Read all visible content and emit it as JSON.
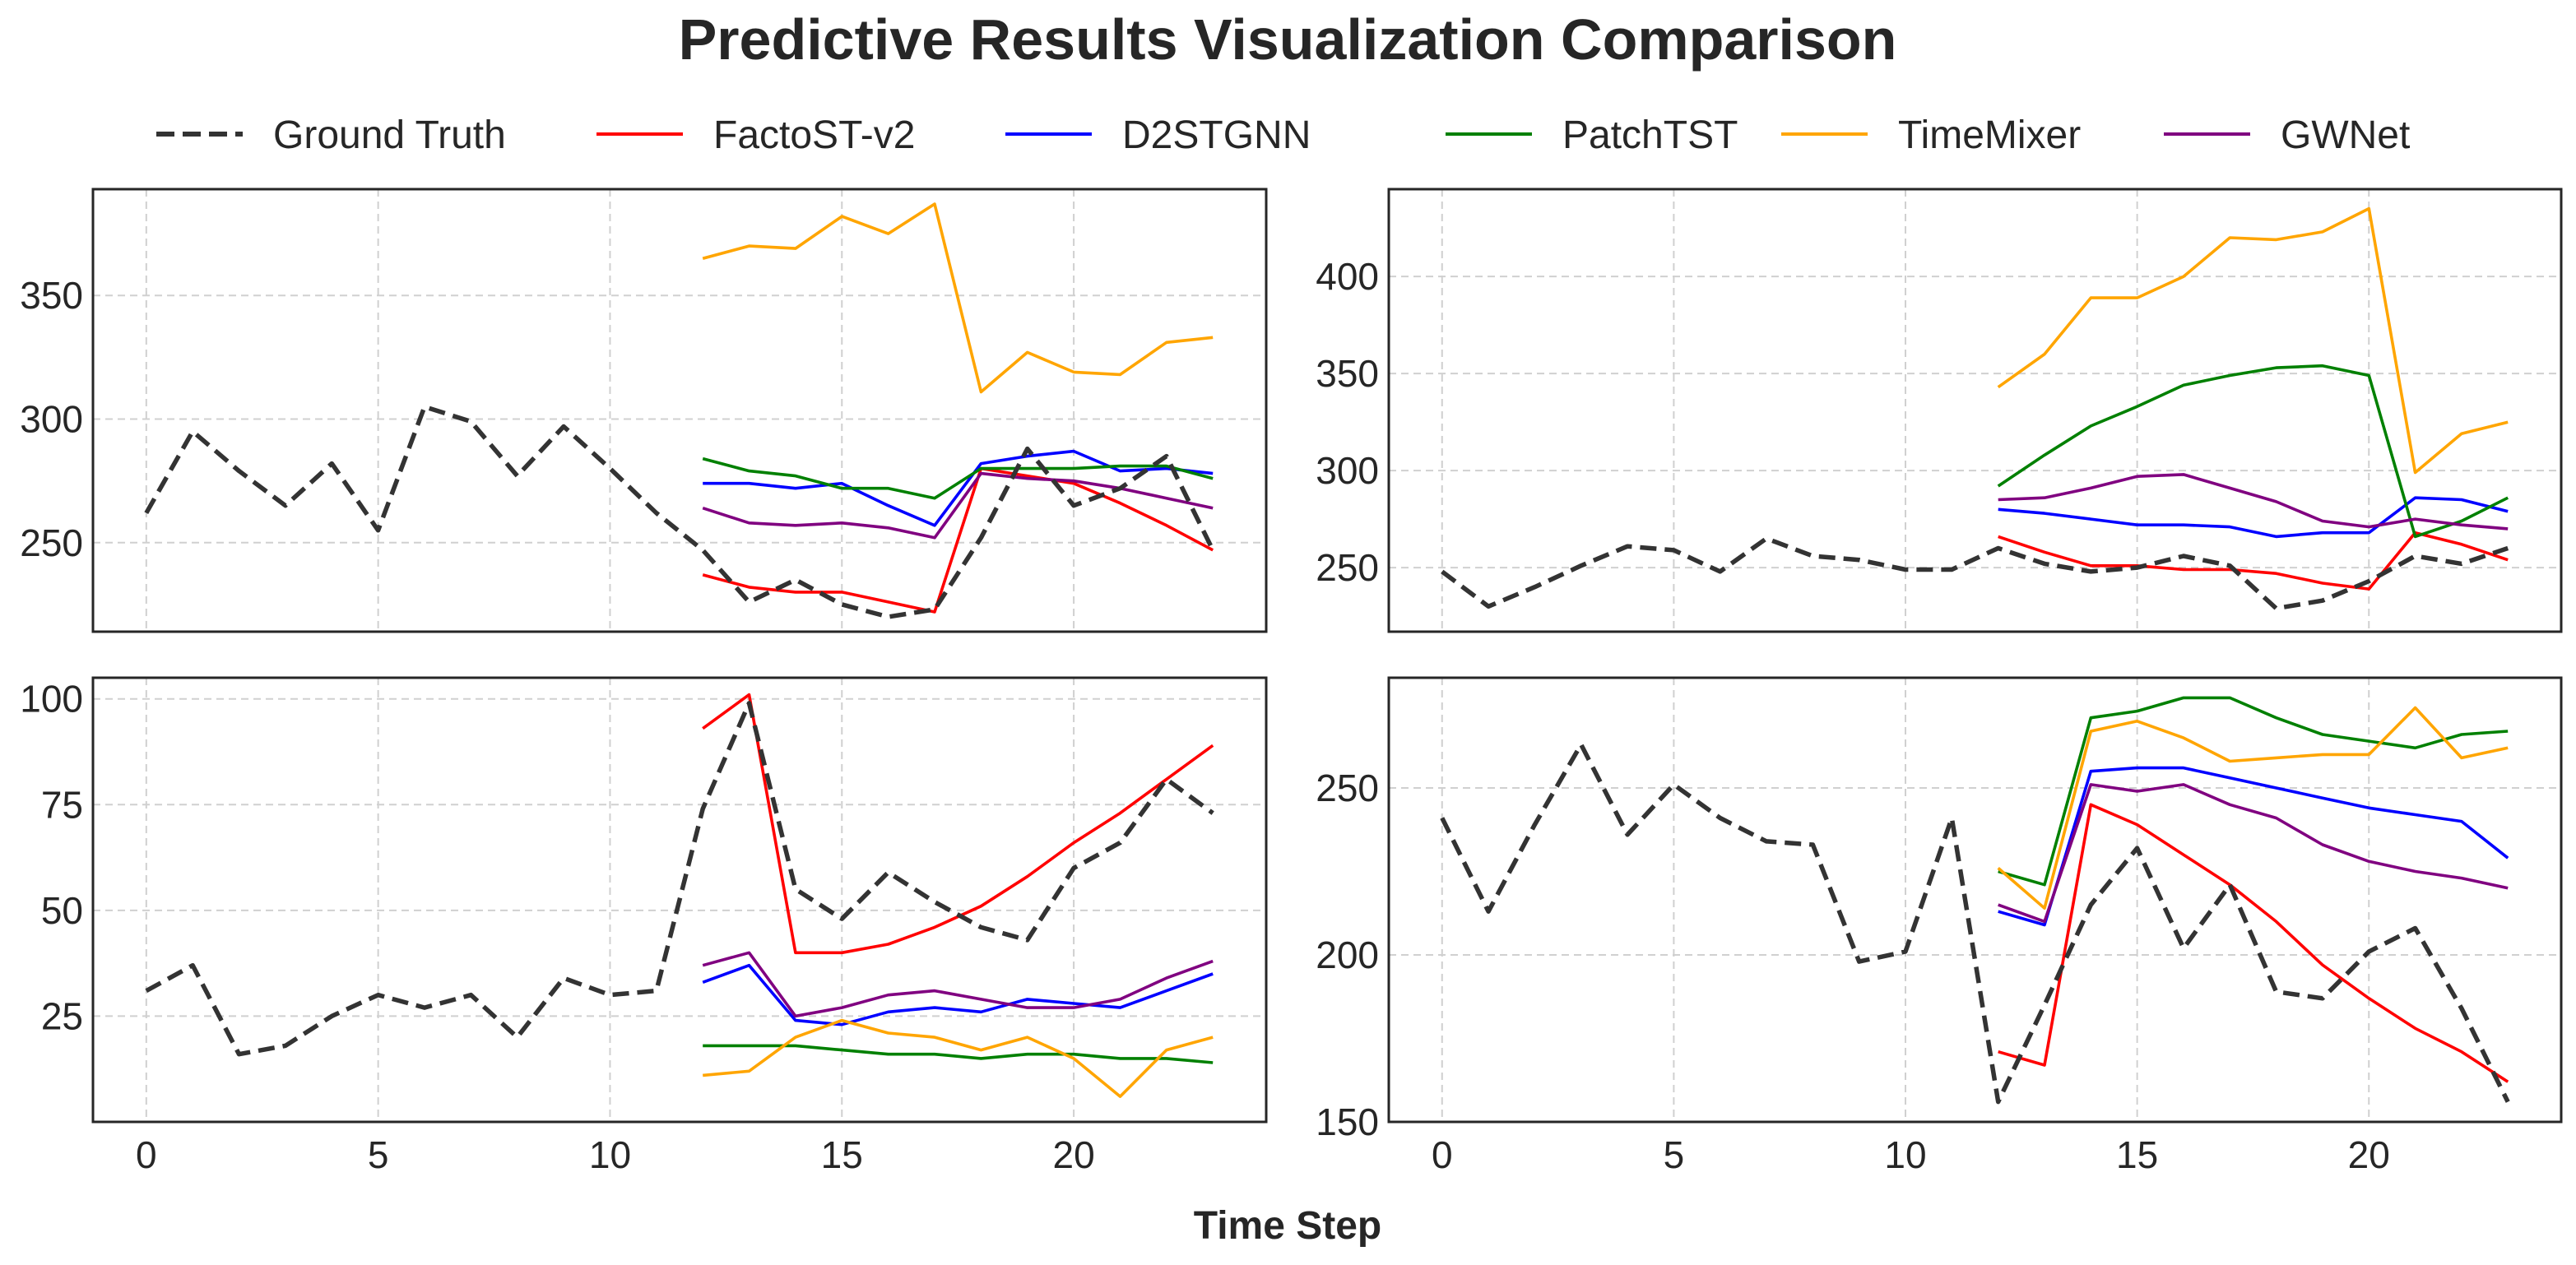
{
  "chart_data": {
    "title": "Predictive Results Visualization Comparison",
    "xlabel": "Time Step",
    "legend": [
      {
        "name": "Ground Truth",
        "color": "#333333",
        "dashed": true
      },
      {
        "name": "FactoST-v2",
        "color": "#ff0000",
        "dashed": false
      },
      {
        "name": "D2STGNN",
        "color": "#0000ff",
        "dashed": false
      },
      {
        "name": "PatchTST",
        "color": "#008000",
        "dashed": false
      },
      {
        "name": "TimeMixer",
        "color": "#ffa500",
        "dashed": false
      },
      {
        "name": "GWNet",
        "color": "#800080",
        "dashed": false
      }
    ],
    "subplots": [
      {
        "type": "line",
        "position": "top-left",
        "xlim": [
          -1.15,
          24.15
        ],
        "ylim": [
          214,
          393
        ],
        "xticks": [
          0,
          5,
          10,
          15,
          20
        ],
        "yticks": [
          250,
          300,
          350
        ],
        "show_xtick_labels": false,
        "series": [
          {
            "name": "Ground Truth",
            "color": "#333333",
            "dashed": true,
            "x0": 0,
            "values": [
              262,
              295,
              279,
              265,
              282,
              255,
              305,
              299,
              277,
              297,
              280,
              262,
              247,
              226,
              235,
              225,
              220,
              223,
              252,
              288,
              265,
              272,
              285,
              247
            ]
          },
          {
            "name": "FactoST-v2",
            "color": "#ff0000",
            "dashed": false,
            "x0": 12,
            "values": [
              237,
              232,
              230,
              230,
              226,
              222,
              280,
              277,
              274,
              266,
              257,
              247
            ]
          },
          {
            "name": "D2STGNN",
            "color": "#0000ff",
            "dashed": false,
            "x0": 12,
            "values": [
              274,
              274,
              272,
              274,
              265,
              257,
              282,
              285,
              287,
              279,
              280,
              278
            ]
          },
          {
            "name": "PatchTST",
            "color": "#008000",
            "dashed": false,
            "x0": 12,
            "values": [
              284,
              279,
              277,
              272,
              272,
              268,
              280,
              280,
              280,
              281,
              281,
              276
            ]
          },
          {
            "name": "TimeMixer",
            "color": "#ffa500",
            "dashed": false,
            "x0": 12,
            "values": [
              365,
              370,
              369,
              382,
              375,
              387,
              311,
              327,
              319,
              318,
              331,
              333
            ]
          },
          {
            "name": "GWNet",
            "color": "#800080",
            "dashed": false,
            "x0": 12,
            "values": [
              264,
              258,
              257,
              258,
              256,
              252,
              278,
              276,
              275,
              272,
              268,
              264
            ]
          }
        ]
      },
      {
        "type": "line",
        "position": "top-right",
        "xlim": [
          -1.15,
          24.15
        ],
        "ylim": [
          217,
          445
        ],
        "xticks": [
          0,
          5,
          10,
          15,
          20
        ],
        "yticks": [
          250,
          300,
          350,
          400
        ],
        "show_xtick_labels": false,
        "series": [
          {
            "name": "Ground Truth",
            "color": "#333333",
            "dashed": true,
            "x0": 0,
            "values": [
              248,
              230,
              240,
              251,
              261,
              259,
              248,
              265,
              256,
              254,
              249,
              249,
              260,
              252,
              248,
              250,
              256,
              251,
              229,
              233,
              243,
              256,
              252,
              260
            ]
          },
          {
            "name": "FactoST-v2",
            "color": "#ff0000",
            "dashed": false,
            "x0": 12,
            "values": [
              266,
              258,
              251,
              251,
              249,
              249,
              247,
              242,
              239,
              268,
              262,
              254
            ]
          },
          {
            "name": "D2STGNN",
            "color": "#0000ff",
            "dashed": false,
            "x0": 12,
            "values": [
              280,
              278,
              275,
              272,
              272,
              271,
              266,
              268,
              268,
              286,
              285,
              279
            ]
          },
          {
            "name": "PatchTST",
            "color": "#008000",
            "dashed": false,
            "x0": 12,
            "values": [
              292,
              308,
              323,
              333,
              344,
              349,
              353,
              354,
              349,
              266,
              274,
              286
            ]
          },
          {
            "name": "TimeMixer",
            "color": "#ffa500",
            "dashed": false,
            "x0": 12,
            "values": [
              343,
              360,
              389,
              389,
              400,
              420,
              419,
              423,
              435,
              299,
              319,
              325
            ]
          },
          {
            "name": "GWNet",
            "color": "#800080",
            "dashed": false,
            "x0": 12,
            "values": [
              285,
              286,
              291,
              297,
              298,
              291,
              284,
              274,
              271,
              275,
              272,
              270
            ]
          }
        ]
      },
      {
        "type": "line",
        "position": "bottom-left",
        "xlim": [
          -1.15,
          24.15
        ],
        "ylim": [
          0,
          105
        ],
        "xticks": [
          0,
          5,
          10,
          15,
          20
        ],
        "yticks": [
          25,
          50,
          75,
          100
        ],
        "show_xtick_labels": true,
        "series": [
          {
            "name": "Ground Truth",
            "color": "#333333",
            "dashed": true,
            "x0": 0,
            "values": [
              31,
              37,
              16,
              18,
              25,
              30,
              27,
              30,
              20,
              34,
              30,
              31,
              74,
              99,
              55,
              48,
              59,
              52,
              46,
              43,
              60,
              66,
              81,
              73
            ]
          },
          {
            "name": "FactoST-v2",
            "color": "#ff0000",
            "dashed": false,
            "x0": 12,
            "values": [
              93,
              101,
              40,
              40,
              42,
              46,
              51,
              58,
              66,
              73,
              81,
              89
            ]
          },
          {
            "name": "D2STGNN",
            "color": "#0000ff",
            "dashed": false,
            "x0": 12,
            "values": [
              33,
              37,
              24,
              23,
              26,
              27,
              26,
              29,
              28,
              27,
              31,
              35
            ]
          },
          {
            "name": "PatchTST",
            "color": "#008000",
            "dashed": false,
            "x0": 12,
            "values": [
              18,
              18,
              18,
              17,
              16,
              16,
              15,
              16,
              16,
              15,
              15,
              14
            ]
          },
          {
            "name": "TimeMixer",
            "color": "#ffa500",
            "dashed": false,
            "x0": 12,
            "values": [
              11,
              12,
              20,
              24,
              21,
              20,
              17,
              20,
              15,
              6,
              17,
              20
            ]
          },
          {
            "name": "GWNet",
            "color": "#800080",
            "dashed": false,
            "x0": 12,
            "values": [
              37,
              40,
              25,
              27,
              30,
              31,
              29,
              27,
              27,
              29,
              34,
              38
            ]
          }
        ]
      },
      {
        "type": "line",
        "position": "bottom-right",
        "xlim": [
          -1.15,
          24.15
        ],
        "ylim": [
          150,
          283
        ],
        "xticks": [
          0,
          5,
          10,
          15,
          20
        ],
        "yticks": [
          150,
          200,
          250
        ],
        "show_xtick_labels": true,
        "series": [
          {
            "name": "Ground Truth",
            "color": "#333333",
            "dashed": true,
            "x0": 0,
            "values": [
              241,
              213,
              239,
              263,
              236,
              251,
              241,
              234,
              233,
              198,
              201,
              241,
              156,
              185,
              215,
              232,
              202,
              221,
              189,
              187,
              201,
              208,
              184,
              156
            ]
          },
          {
            "name": "FactoST-v2",
            "color": "#ff0000",
            "dashed": false,
            "x0": 12,
            "values": [
              171,
              167,
              245,
              239,
              230,
              221,
              210,
              197,
              187,
              178,
              171,
              162
            ]
          },
          {
            "name": "D2STGNN",
            "color": "#0000ff",
            "dashed": false,
            "x0": 12,
            "values": [
              213,
              209,
              255,
              256,
              256,
              253,
              250,
              247,
              244,
              242,
              240,
              229
            ]
          },
          {
            "name": "PatchTST",
            "color": "#008000",
            "dashed": false,
            "x0": 12,
            "values": [
              225,
              221,
              271,
              273,
              277,
              277,
              271,
              266,
              264,
              262,
              266,
              267
            ]
          },
          {
            "name": "TimeMixer",
            "color": "#ffa500",
            "dashed": false,
            "x0": 12,
            "values": [
              226,
              214,
              267,
              270,
              265,
              258,
              259,
              260,
              260,
              274,
              259,
              262
            ]
          },
          {
            "name": "GWNet",
            "color": "#800080",
            "dashed": false,
            "x0": 12,
            "values": [
              215,
              210,
              251,
              249,
              251,
              245,
              241,
              233,
              228,
              225,
              223,
              220
            ]
          }
        ]
      }
    ]
  }
}
